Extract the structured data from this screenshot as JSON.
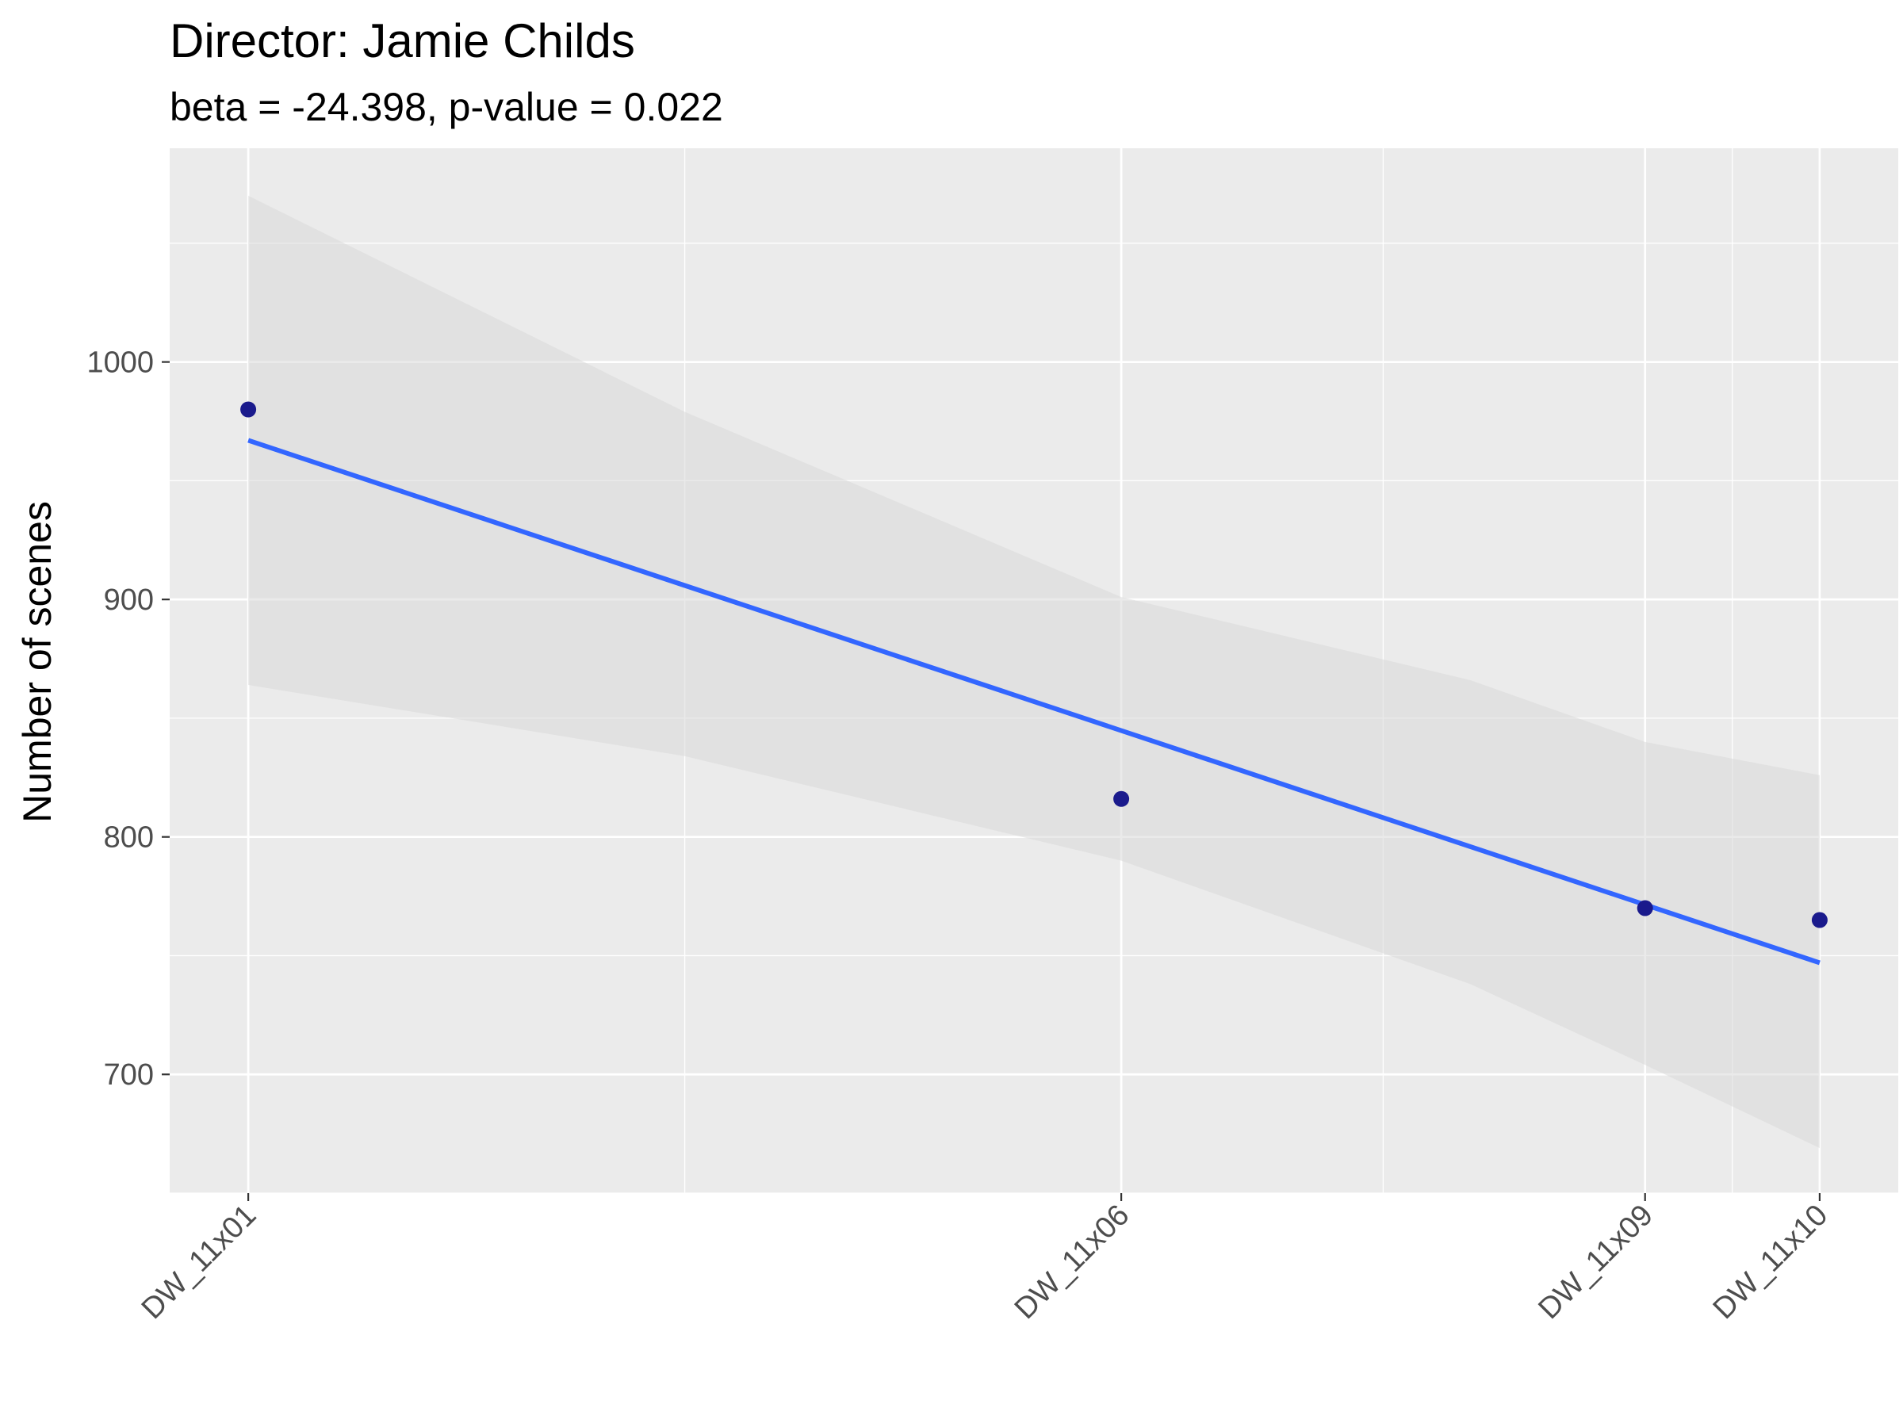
{
  "chart_data": {
    "type": "scatter",
    "title": "Director: Jamie Childs",
    "subtitle": "beta = -24.398, p-value = 0.022",
    "xlabel": "",
    "ylabel": "Number of scenes",
    "x_categories": [
      "DW_11x01",
      "DW_11x06",
      "DW_11x09",
      "DW_11x10"
    ],
    "x_positions": [
      1,
      6,
      9,
      10
    ],
    "xlim": [
      0.55,
      10.45
    ],
    "ylim": [
      650,
      1090
    ],
    "yticks": [
      700,
      800,
      900,
      1000
    ],
    "grid": true,
    "series": [
      {
        "type": "scatter",
        "x": [
          1,
          6,
          9,
          10
        ],
        "y": [
          980,
          816,
          770,
          765
        ]
      }
    ],
    "fit": {
      "type": "linear",
      "x": [
        1,
        10
      ],
      "y": [
        967,
        747
      ]
    },
    "confidence_band": {
      "x": [
        1,
        3.5,
        6,
        8,
        9,
        10
      ],
      "lower": [
        864,
        834,
        790,
        738,
        704,
        669
      ],
      "upper": [
        1070,
        979,
        901,
        866,
        840,
        826
      ]
    },
    "colors": {
      "panel": "#EBEBEB",
      "grid": "#FFFFFF",
      "points": "#1A1A8C",
      "fit_line": "#3366FF",
      "band": "#D9D9D9"
    }
  }
}
